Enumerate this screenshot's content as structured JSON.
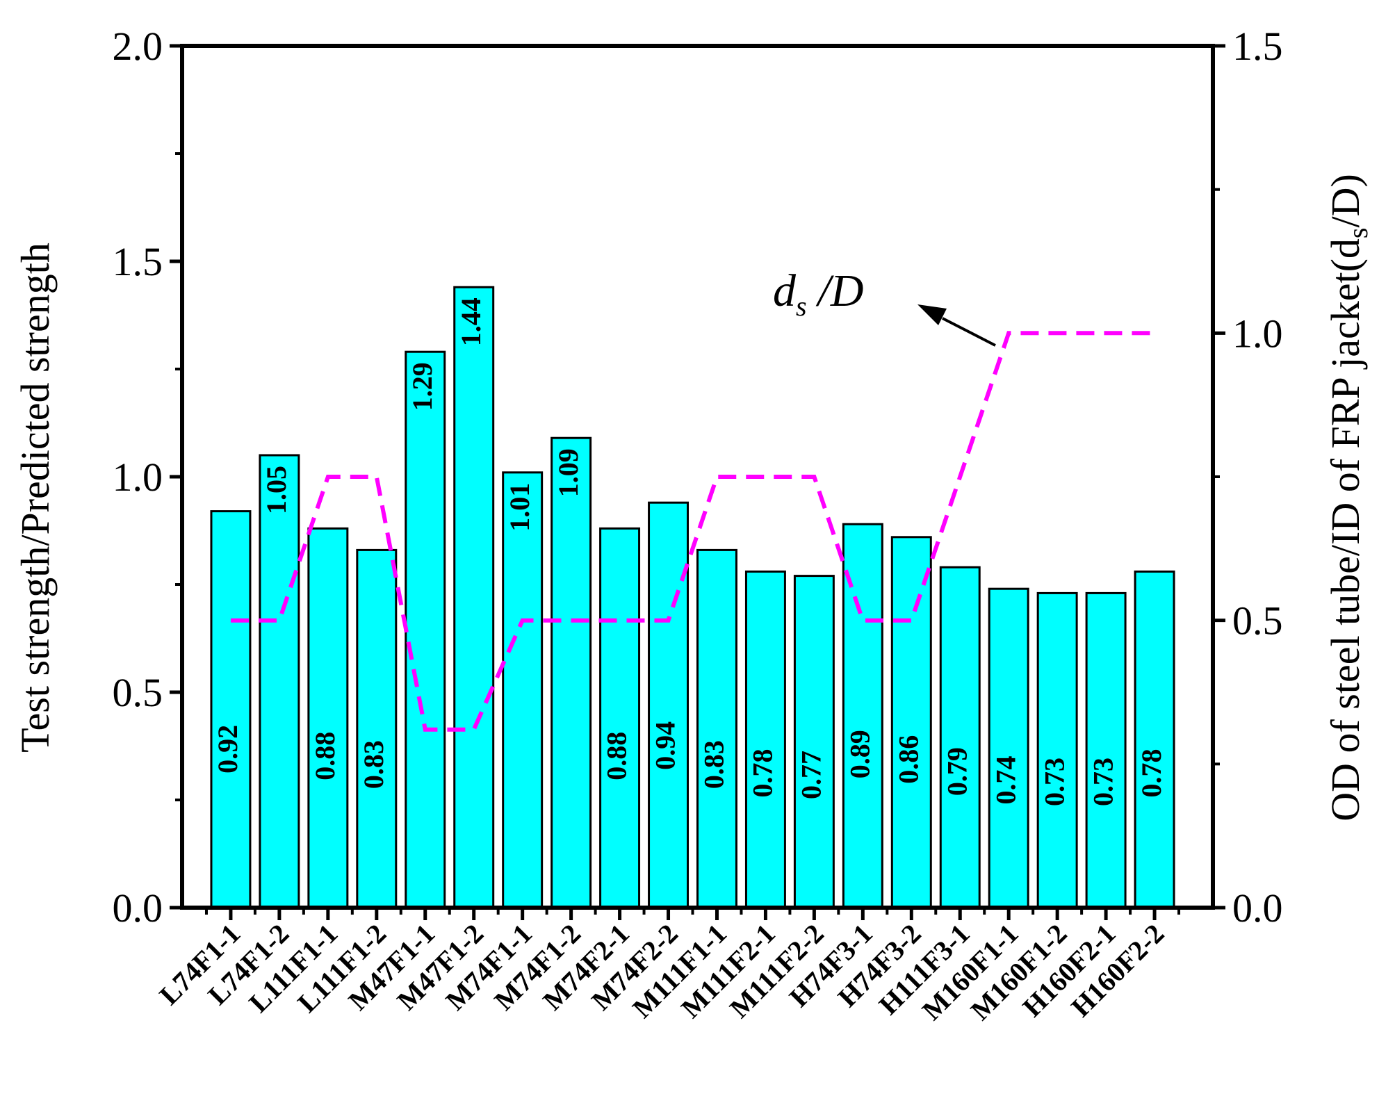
{
  "chart_data": {
    "type": "bar",
    "title": "",
    "categories": [
      "L74F1-1",
      "L74F1-2",
      "L111F1-1",
      "L111F1-2",
      "M47F1-1",
      "M47F1-2",
      "M74F1-1",
      "M74F1-2",
      "M74F2-1",
      "M74F2-2",
      "M111F1-1",
      "M111F2-1",
      "M111F2-2",
      "H74F3-1",
      "H74F3-2",
      "H111F3-1",
      "M160F1-1",
      "M160F1-2",
      "H160F2-1",
      "H160F2-2"
    ],
    "series": [
      {
        "name": "Test strength/Predicted strength",
        "axis": "left",
        "type": "bar",
        "color": "#00FFFF",
        "values": [
          0.92,
          1.05,
          0.88,
          0.83,
          1.29,
          1.44,
          1.01,
          1.09,
          0.88,
          0.94,
          0.83,
          0.78,
          0.77,
          0.89,
          0.86,
          0.79,
          0.74,
          0.73,
          0.73,
          0.78
        ],
        "labels": [
          "0.92",
          "1.05",
          "0.88",
          "0.83",
          "1.29",
          "1.44",
          "1.01",
          "1.09",
          "0.88",
          "0.94",
          "0.83",
          "0.78",
          "0.77",
          "0.89",
          "0.86",
          "0.79",
          "0.74",
          "0.73",
          "0.73",
          "0.78"
        ]
      },
      {
        "name": "ds/D",
        "axis": "right",
        "type": "line",
        "style": "dashed",
        "color": "#FF00FF",
        "values": [
          0.5,
          0.5,
          0.75,
          0.75,
          0.31,
          0.31,
          0.5,
          0.5,
          0.5,
          0.5,
          0.75,
          0.75,
          0.75,
          0.5,
          0.5,
          0.75,
          1.0,
          1.0,
          1.0,
          1.0
        ]
      }
    ],
    "ylabel": "Test strength/Predicted strength",
    "ylim": [
      0,
      2.0
    ],
    "yticks": [
      "0.0",
      "0.5",
      "1.0",
      "1.5",
      "2.0"
    ],
    "y2label_main": "OD of steel tube/ID of FRP jacket(d",
    "y2label_sub": "s",
    "y2label_end": "/D)",
    "y2lim": [
      0,
      1.5
    ],
    "y2ticks": [
      "0.0",
      "0.5",
      "1.0",
      "1.5"
    ],
    "annotation": {
      "main": "d",
      "sub": "s",
      "rest": "/D"
    },
    "grid": false,
    "legend": "none"
  }
}
